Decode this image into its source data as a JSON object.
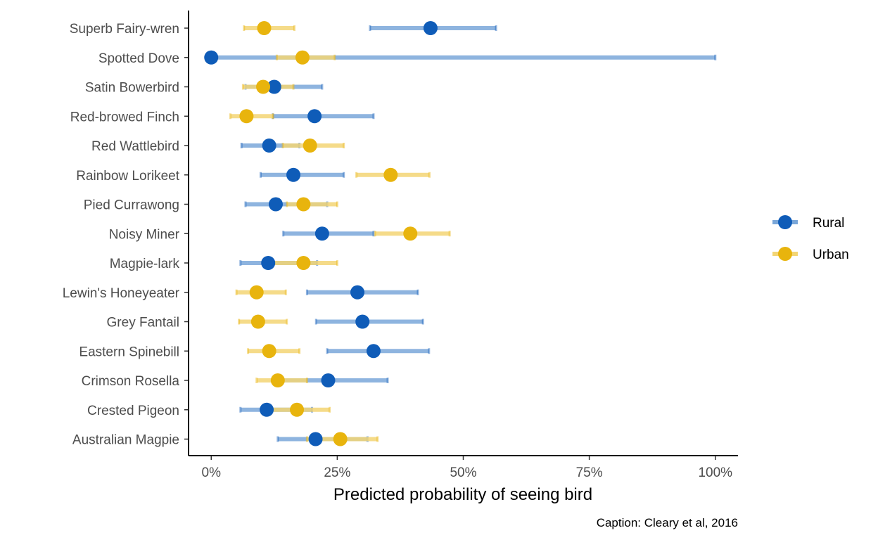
{
  "chart_data": {
    "type": "scatter",
    "title": "",
    "xlabel": "Predicted probability of seeing bird",
    "ylabel": "",
    "caption": "Caption: Cleary et al, 2016",
    "xlim": [
      -0.045,
      1.045
    ],
    "x_ticks": [
      0,
      0.25,
      0.5,
      0.75,
      1.0
    ],
    "x_tick_labels": [
      "0%",
      "25%",
      "50%",
      "75%",
      "100%"
    ],
    "grid": false,
    "legend_position": "right",
    "categories": [
      "Superb Fairy-wren",
      "Spotted Dove",
      "Satin Bowerbird",
      "Red-browed Finch",
      "Red Wattlebird",
      "Rainbow Lorikeet",
      "Pied Currawong",
      "Noisy Miner",
      "Magpie-lark",
      "Lewin's Honeyeater",
      "Grey Fantail",
      "Eastern Spinebill",
      "Crimson Rosella",
      "Crested Pigeon",
      "Australian Magpie"
    ],
    "series": [
      {
        "name": "Rural",
        "color": "#0f5cb8",
        "interval_color": "#7aa7d9",
        "estimate": [
          0.435,
          0.0,
          0.125,
          0.205,
          0.115,
          0.163,
          0.128,
          0.22,
          0.113,
          0.29,
          0.3,
          0.322,
          0.232,
          0.11,
          0.207
        ],
        "lower": [
          0.315,
          0.0,
          0.068,
          0.122,
          0.06,
          0.098,
          0.068,
          0.143,
          0.058,
          0.19,
          0.208,
          0.23,
          0.143,
          0.058,
          0.132
        ],
        "upper": [
          0.565,
          1.0,
          0.22,
          0.322,
          0.175,
          0.263,
          0.23,
          0.322,
          0.21,
          0.41,
          0.42,
          0.432,
          0.35,
          0.2,
          0.31
        ]
      },
      {
        "name": "Urban",
        "color": "#e8b40d",
        "interval_color": "#f3d574",
        "estimate": [
          0.105,
          0.181,
          0.103,
          0.07,
          0.196,
          0.356,
          0.183,
          0.395,
          0.183,
          0.09,
          0.093,
          0.115,
          0.132,
          0.17,
          0.256
        ],
        "lower": [
          0.065,
          0.13,
          0.063,
          0.038,
          0.142,
          0.288,
          0.15,
          0.325,
          0.12,
          0.05,
          0.055,
          0.073,
          0.09,
          0.11,
          0.19
        ],
        "upper": [
          0.165,
          0.245,
          0.163,
          0.123,
          0.263,
          0.433,
          0.25,
          0.473,
          0.25,
          0.148,
          0.15,
          0.175,
          0.19,
          0.235,
          0.33
        ]
      }
    ]
  }
}
